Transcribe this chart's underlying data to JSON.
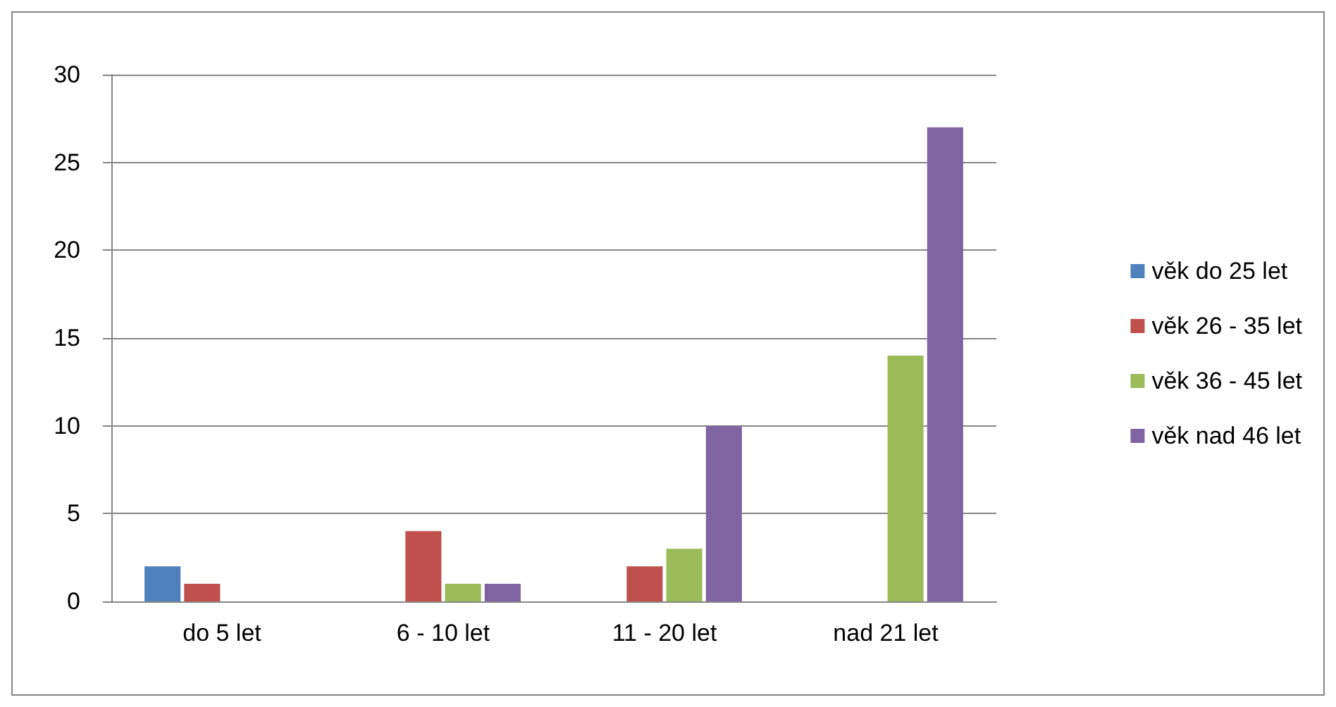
{
  "chart_data": {
    "type": "bar",
    "categories": [
      "do 5 let",
      "6 - 10 let",
      "11 - 20 let",
      "nad 21 let"
    ],
    "series": [
      {
        "name": "věk do 25 let",
        "color": "#4f81bd",
        "values": [
          2,
          0,
          0,
          0
        ]
      },
      {
        "name": "věk 26 - 35 let",
        "color": "#c0504d",
        "values": [
          1,
          4,
          2,
          0
        ]
      },
      {
        "name": "věk 36 - 45 let",
        "color": "#9bbb59",
        "values": [
          0,
          1,
          3,
          14
        ]
      },
      {
        "name": "věk nad 46 let",
        "color": "#8064a2",
        "values": [
          0,
          1,
          10,
          27
        ]
      }
    ],
    "ylim": [
      0,
      30
    ],
    "yticks": [
      0,
      5,
      10,
      15,
      20,
      25,
      30
    ],
    "grid": "y",
    "legend": "right"
  }
}
